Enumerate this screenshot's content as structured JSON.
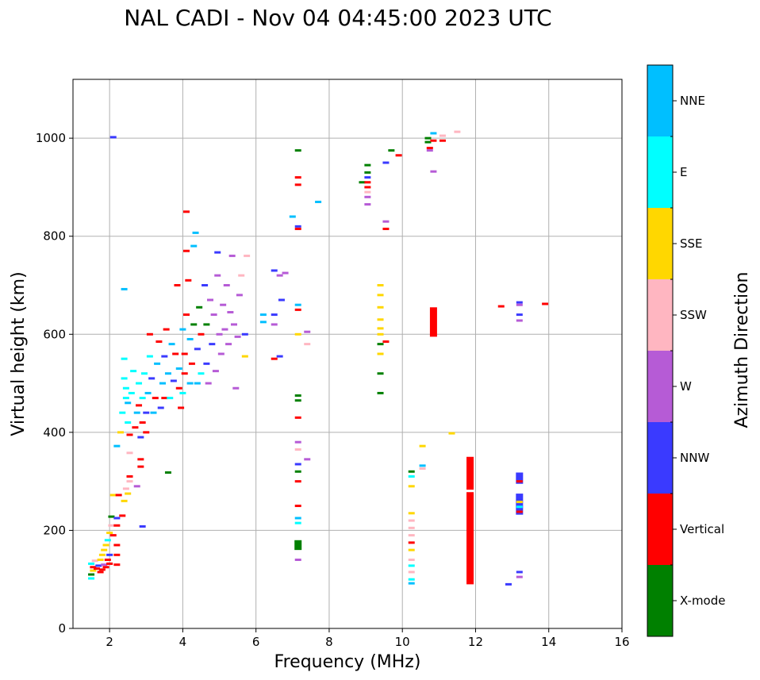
{
  "chart_data": {
    "type": "scatter",
    "title": "NAL CADI - Nov 04 04:45:00 2023 UTC",
    "xlabel": "Frequency (MHz)",
    "ylabel": "Virtual height (km)",
    "xlim": [
      1,
      16
    ],
    "ylim": [
      0,
      1120
    ],
    "xticks": [
      2,
      4,
      6,
      8,
      10,
      12,
      14,
      16
    ],
    "yticks": [
      0,
      200,
      400,
      600,
      800,
      1000
    ],
    "grid": true,
    "colorbar": {
      "label": "Azimuth Direction",
      "categories": [
        {
          "name": "X-mode",
          "color": "#008000"
        },
        {
          "name": "Vertical",
          "color": "#ff0000"
        },
        {
          "name": "NNW",
          "color": "#3a3aff"
        },
        {
          "name": "W",
          "color": "#b65bd6"
        },
        {
          "name": "SSW",
          "color": "#ffb6c1"
        },
        {
          "name": "SSE",
          "color": "#ffd700"
        },
        {
          "name": "E",
          "color": "#00ffff"
        },
        {
          "name": "NNE",
          "color": "#00bfff"
        }
      ]
    },
    "segments": [
      {
        "f": 11.85,
        "h1": 90,
        "h2": 278,
        "c": "Vertical"
      },
      {
        "f": 11.85,
        "h1": 283,
        "h2": 350,
        "c": "Vertical"
      },
      {
        "f": 13.2,
        "h1": 295,
        "h2": 318,
        "c": "NNW"
      },
      {
        "f": 13.2,
        "h1": 232,
        "h2": 275,
        "c": "NNW"
      },
      {
        "f": 7.15,
        "h1": 160,
        "h2": 180,
        "c": "X-mode"
      },
      {
        "f": 10.85,
        "h1": 595,
        "h2": 655,
        "c": "Vertical"
      }
    ],
    "points": [
      {
        "f": 1.5,
        "h": 102,
        "c": "E"
      },
      {
        "f": 1.5,
        "h": 110,
        "c": "X-mode"
      },
      {
        "f": 1.55,
        "h": 118,
        "c": "SSE"
      },
      {
        "f": 1.55,
        "h": 125,
        "c": "Vertical"
      },
      {
        "f": 1.5,
        "h": 132,
        "c": "E"
      },
      {
        "f": 1.6,
        "h": 138,
        "c": "SSW"
      },
      {
        "f": 1.65,
        "h": 122,
        "c": "Vertical"
      },
      {
        "f": 1.7,
        "h": 128,
        "c": "NNW"
      },
      {
        "f": 1.75,
        "h": 115,
        "c": "Vertical"
      },
      {
        "f": 1.75,
        "h": 140,
        "c": "SSE"
      },
      {
        "f": 1.8,
        "h": 150,
        "c": "SSE"
      },
      {
        "f": 1.8,
        "h": 120,
        "c": "Vertical"
      },
      {
        "f": 1.85,
        "h": 160,
        "c": "SSE"
      },
      {
        "f": 1.85,
        "h": 130,
        "c": "W"
      },
      {
        "f": 1.9,
        "h": 170,
        "c": "SSE"
      },
      {
        "f": 1.9,
        "h": 125,
        "c": "Vertical"
      },
      {
        "f": 1.95,
        "h": 180,
        "c": "E"
      },
      {
        "f": 1.95,
        "h": 140,
        "c": "Vertical"
      },
      {
        "f": 2.0,
        "h": 195,
        "c": "SSE"
      },
      {
        "f": 2.0,
        "h": 150,
        "c": "NNW"
      },
      {
        "f": 2.0,
        "h": 132,
        "c": "Vertical"
      },
      {
        "f": 2.05,
        "h": 210,
        "c": "SSW"
      },
      {
        "f": 2.05,
        "h": 228,
        "c": "X-mode"
      },
      {
        "f": 2.1,
        "h": 190,
        "c": "Vertical"
      },
      {
        "f": 2.1,
        "h": 272,
        "c": "SSE"
      },
      {
        "f": 2.2,
        "h": 150,
        "c": "Vertical"
      },
      {
        "f": 2.2,
        "h": 170,
        "c": "Vertical"
      },
      {
        "f": 2.2,
        "h": 210,
        "c": "Vertical"
      },
      {
        "f": 2.2,
        "h": 225,
        "c": "NNW"
      },
      {
        "f": 2.2,
        "h": 130,
        "c": "Vertical"
      },
      {
        "f": 2.25,
        "h": 272,
        "c": "Vertical"
      },
      {
        "f": 2.35,
        "h": 230,
        "c": "Vertical"
      },
      {
        "f": 2.4,
        "h": 260,
        "c": "SSE"
      },
      {
        "f": 2.45,
        "h": 285,
        "c": "SSW"
      },
      {
        "f": 2.5,
        "h": 275,
        "c": "SSE"
      },
      {
        "f": 2.55,
        "h": 300,
        "c": "SSW"
      },
      {
        "f": 2.55,
        "h": 358,
        "c": "SSW"
      },
      {
        "f": 2.55,
        "h": 310,
        "c": "Vertical"
      },
      {
        "f": 2.75,
        "h": 290,
        "c": "W"
      },
      {
        "f": 2.85,
        "h": 345,
        "c": "Vertical"
      },
      {
        "f": 2.85,
        "h": 330,
        "c": "Vertical"
      },
      {
        "f": 2.3,
        "h": 400,
        "c": "SSE"
      },
      {
        "f": 2.35,
        "h": 440,
        "c": "E"
      },
      {
        "f": 2.45,
        "h": 470,
        "c": "E"
      },
      {
        "f": 2.4,
        "h": 510,
        "c": "E"
      },
      {
        "f": 2.4,
        "h": 550,
        "c": "E"
      },
      {
        "f": 2.45,
        "h": 490,
        "c": "E"
      },
      {
        "f": 2.5,
        "h": 460,
        "c": "NNE"
      },
      {
        "f": 2.5,
        "h": 420,
        "c": "E"
      },
      {
        "f": 2.55,
        "h": 395,
        "c": "Vertical"
      },
      {
        "f": 2.6,
        "h": 480,
        "c": "E"
      },
      {
        "f": 2.65,
        "h": 525,
        "c": "E"
      },
      {
        "f": 2.7,
        "h": 410,
        "c": "Vertical"
      },
      {
        "f": 2.75,
        "h": 440,
        "c": "NNE"
      },
      {
        "f": 2.8,
        "h": 455,
        "c": "Vertical"
      },
      {
        "f": 2.8,
        "h": 500,
        "c": "E"
      },
      {
        "f": 2.85,
        "h": 390,
        "c": "NNW"
      },
      {
        "f": 2.9,
        "h": 420,
        "c": "Vertical"
      },
      {
        "f": 2.9,
        "h": 470,
        "c": "E"
      },
      {
        "f": 2.95,
        "h": 520,
        "c": "E"
      },
      {
        "f": 3.0,
        "h": 440,
        "c": "NNW"
      },
      {
        "f": 3.0,
        "h": 400,
        "c": "Vertical"
      },
      {
        "f": 3.05,
        "h": 480,
        "c": "NNE"
      },
      {
        "f": 3.1,
        "h": 555,
        "c": "E"
      },
      {
        "f": 3.1,
        "h": 600,
        "c": "Vertical"
      },
      {
        "f": 3.15,
        "h": 510,
        "c": "NNW"
      },
      {
        "f": 3.2,
        "h": 440,
        "c": "NNE"
      },
      {
        "f": 3.25,
        "h": 470,
        "c": "Vertical"
      },
      {
        "f": 3.3,
        "h": 540,
        "c": "NNE"
      },
      {
        "f": 3.35,
        "h": 585,
        "c": "Vertical"
      },
      {
        "f": 3.4,
        "h": 450,
        "c": "NNW"
      },
      {
        "f": 3.45,
        "h": 500,
        "c": "NNE"
      },
      {
        "f": 3.5,
        "h": 470,
        "c": "Vertical"
      },
      {
        "f": 3.5,
        "h": 555,
        "c": "NNW"
      },
      {
        "f": 3.55,
        "h": 610,
        "c": "Vertical"
      },
      {
        "f": 3.6,
        "h": 520,
        "c": "NNE"
      },
      {
        "f": 3.65,
        "h": 470,
        "c": "E"
      },
      {
        "f": 3.7,
        "h": 580,
        "c": "NNE"
      },
      {
        "f": 3.75,
        "h": 505,
        "c": "NNW"
      },
      {
        "f": 3.8,
        "h": 560,
        "c": "Vertical"
      },
      {
        "f": 3.85,
        "h": 700,
        "c": "Vertical"
      },
      {
        "f": 3.9,
        "h": 490,
        "c": "Vertical"
      },
      {
        "f": 3.9,
        "h": 530,
        "c": "NNE"
      },
      {
        "f": 3.95,
        "h": 450,
        "c": "Vertical"
      },
      {
        "f": 4.0,
        "h": 610,
        "c": "NNE"
      },
      {
        "f": 4.0,
        "h": 480,
        "c": "E"
      },
      {
        "f": 4.05,
        "h": 560,
        "c": "Vertical"
      },
      {
        "f": 4.05,
        "h": 520,
        "c": "Vertical"
      },
      {
        "f": 4.1,
        "h": 640,
        "c": "Vertical"
      },
      {
        "f": 4.1,
        "h": 770,
        "c": "Vertical"
      },
      {
        "f": 4.1,
        "h": 850,
        "c": "Vertical"
      },
      {
        "f": 4.15,
        "h": 710,
        "c": "Vertical"
      },
      {
        "f": 4.2,
        "h": 590,
        "c": "NNE"
      },
      {
        "f": 4.2,
        "h": 500,
        "c": "NNE"
      },
      {
        "f": 4.25,
        "h": 540,
        "c": "Vertical"
      },
      {
        "f": 4.3,
        "h": 780,
        "c": "NNE"
      },
      {
        "f": 4.3,
        "h": 620,
        "c": "X-mode"
      },
      {
        "f": 4.35,
        "h": 807,
        "c": "NNE"
      },
      {
        "f": 4.4,
        "h": 500,
        "c": "NNE"
      },
      {
        "f": 4.4,
        "h": 570,
        "c": "NNW"
      },
      {
        "f": 4.45,
        "h": 655,
        "c": "X-mode"
      },
      {
        "f": 4.5,
        "h": 600,
        "c": "Vertical"
      },
      {
        "f": 4.5,
        "h": 520,
        "c": "E"
      },
      {
        "f": 4.6,
        "h": 700,
        "c": "NNW"
      },
      {
        "f": 4.65,
        "h": 620,
        "c": "X-mode"
      },
      {
        "f": 4.65,
        "h": 540,
        "c": "NNW"
      },
      {
        "f": 4.7,
        "h": 500,
        "c": "W"
      },
      {
        "f": 4.75,
        "h": 670,
        "c": "W"
      },
      {
        "f": 4.8,
        "h": 580,
        "c": "NNW"
      },
      {
        "f": 4.85,
        "h": 640,
        "c": "W"
      },
      {
        "f": 4.9,
        "h": 525,
        "c": "W"
      },
      {
        "f": 4.95,
        "h": 720,
        "c": "W"
      },
      {
        "f": 4.95,
        "h": 767,
        "c": "NNW"
      },
      {
        "f": 5.0,
        "h": 600,
        "c": "W"
      },
      {
        "f": 5.05,
        "h": 560,
        "c": "W"
      },
      {
        "f": 5.1,
        "h": 660,
        "c": "W"
      },
      {
        "f": 5.15,
        "h": 610,
        "c": "W"
      },
      {
        "f": 5.2,
        "h": 700,
        "c": "W"
      },
      {
        "f": 5.25,
        "h": 580,
        "c": "W"
      },
      {
        "f": 5.3,
        "h": 645,
        "c": "W"
      },
      {
        "f": 5.35,
        "h": 760,
        "c": "W"
      },
      {
        "f": 5.4,
        "h": 620,
        "c": "W"
      },
      {
        "f": 5.45,
        "h": 490,
        "c": "W"
      },
      {
        "f": 5.5,
        "h": 595,
        "c": "W"
      },
      {
        "f": 5.55,
        "h": 680,
        "c": "W"
      },
      {
        "f": 5.6,
        "h": 720,
        "c": "SSW"
      },
      {
        "f": 5.7,
        "h": 600,
        "c": "NNW"
      },
      {
        "f": 5.7,
        "h": 555,
        "c": "SSE"
      },
      {
        "f": 5.75,
        "h": 760,
        "c": "SSW"
      },
      {
        "f": 6.2,
        "h": 640,
        "c": "NNE"
      },
      {
        "f": 6.2,
        "h": 625,
        "c": "NNE"
      },
      {
        "f": 6.5,
        "h": 730,
        "c": "NNW"
      },
      {
        "f": 6.5,
        "h": 640,
        "c": "NNW"
      },
      {
        "f": 6.5,
        "h": 620,
        "c": "W"
      },
      {
        "f": 6.5,
        "h": 550,
        "c": "Vertical"
      },
      {
        "f": 6.65,
        "h": 720,
        "c": "W"
      },
      {
        "f": 6.7,
        "h": 670,
        "c": "NNW"
      },
      {
        "f": 6.8,
        "h": 725,
        "c": "W"
      },
      {
        "f": 6.65,
        "h": 555,
        "c": "NNW"
      },
      {
        "f": 7.0,
        "h": 840,
        "c": "NNE"
      },
      {
        "f": 7.15,
        "h": 975,
        "c": "X-mode"
      },
      {
        "f": 7.15,
        "h": 920,
        "c": "Vertical"
      },
      {
        "f": 7.15,
        "h": 905,
        "c": "Vertical"
      },
      {
        "f": 7.15,
        "h": 820,
        "c": "NNW"
      },
      {
        "f": 7.15,
        "h": 815,
        "c": "Vertical"
      },
      {
        "f": 7.15,
        "h": 660,
        "c": "NNE"
      },
      {
        "f": 7.15,
        "h": 650,
        "c": "Vertical"
      },
      {
        "f": 7.15,
        "h": 600,
        "c": "SSE"
      },
      {
        "f": 7.15,
        "h": 475,
        "c": "X-mode"
      },
      {
        "f": 7.15,
        "h": 465,
        "c": "X-mode"
      },
      {
        "f": 7.15,
        "h": 430,
        "c": "Vertical"
      },
      {
        "f": 7.15,
        "h": 380,
        "c": "W"
      },
      {
        "f": 7.15,
        "h": 365,
        "c": "SSW"
      },
      {
        "f": 7.15,
        "h": 335,
        "c": "NNW"
      },
      {
        "f": 7.15,
        "h": 320,
        "c": "X-mode"
      },
      {
        "f": 7.15,
        "h": 300,
        "c": "Vertical"
      },
      {
        "f": 7.15,
        "h": 250,
        "c": "Vertical"
      },
      {
        "f": 7.15,
        "h": 225,
        "c": "NNE"
      },
      {
        "f": 7.15,
        "h": 215,
        "c": "E"
      },
      {
        "f": 7.15,
        "h": 140,
        "c": "W"
      },
      {
        "f": 7.4,
        "h": 605,
        "c": "W"
      },
      {
        "f": 7.4,
        "h": 580,
        "c": "SSW"
      },
      {
        "f": 7.4,
        "h": 345,
        "c": "W"
      },
      {
        "f": 7.7,
        "h": 870,
        "c": "NNE"
      },
      {
        "f": 8.9,
        "h": 910,
        "c": "X-mode"
      },
      {
        "f": 9.05,
        "h": 945,
        "c": "X-mode"
      },
      {
        "f": 9.05,
        "h": 930,
        "c": "X-mode"
      },
      {
        "f": 9.05,
        "h": 920,
        "c": "NNW"
      },
      {
        "f": 9.05,
        "h": 900,
        "c": "Vertical"
      },
      {
        "f": 9.05,
        "h": 890,
        "c": "SSW"
      },
      {
        "f": 9.05,
        "h": 880,
        "c": "W"
      },
      {
        "f": 9.05,
        "h": 865,
        "c": "W"
      },
      {
        "f": 9.05,
        "h": 910,
        "c": "Vertical"
      },
      {
        "f": 9.4,
        "h": 700,
        "c": "SSE"
      },
      {
        "f": 9.4,
        "h": 680,
        "c": "SSE"
      },
      {
        "f": 9.4,
        "h": 655,
        "c": "SSE"
      },
      {
        "f": 9.4,
        "h": 630,
        "c": "SSE"
      },
      {
        "f": 9.4,
        "h": 612,
        "c": "SSE"
      },
      {
        "f": 9.4,
        "h": 600,
        "c": "SSE"
      },
      {
        "f": 9.4,
        "h": 580,
        "c": "X-mode"
      },
      {
        "f": 9.4,
        "h": 560,
        "c": "SSE"
      },
      {
        "f": 9.4,
        "h": 520,
        "c": "X-mode"
      },
      {
        "f": 9.4,
        "h": 480,
        "c": "X-mode"
      },
      {
        "f": 9.55,
        "h": 950,
        "c": "NNW"
      },
      {
        "f": 9.55,
        "h": 830,
        "c": "W"
      },
      {
        "f": 9.55,
        "h": 815,
        "c": "Vertical"
      },
      {
        "f": 9.55,
        "h": 585,
        "c": "Vertical"
      },
      {
        "f": 9.7,
        "h": 975,
        "c": "X-mode"
      },
      {
        "f": 9.9,
        "h": 965,
        "c": "Vertical"
      },
      {
        "f": 10.25,
        "h": 320,
        "c": "X-mode"
      },
      {
        "f": 10.25,
        "h": 310,
        "c": "E"
      },
      {
        "f": 10.25,
        "h": 290,
        "c": "SSE"
      },
      {
        "f": 10.25,
        "h": 235,
        "c": "SSE"
      },
      {
        "f": 10.25,
        "h": 220,
        "c": "SSW"
      },
      {
        "f": 10.25,
        "h": 205,
        "c": "SSW"
      },
      {
        "f": 10.25,
        "h": 190,
        "c": "SSW"
      },
      {
        "f": 10.25,
        "h": 175,
        "c": "Vertical"
      },
      {
        "f": 10.25,
        "h": 160,
        "c": "SSE"
      },
      {
        "f": 10.25,
        "h": 140,
        "c": "SSW"
      },
      {
        "f": 10.25,
        "h": 128,
        "c": "E"
      },
      {
        "f": 10.25,
        "h": 115,
        "c": "SSW"
      },
      {
        "f": 10.25,
        "h": 100,
        "c": "E"
      },
      {
        "f": 10.25,
        "h": 92,
        "c": "NNE"
      },
      {
        "f": 10.55,
        "h": 372,
        "c": "SSE"
      },
      {
        "f": 10.55,
        "h": 332,
        "c": "NNE"
      },
      {
        "f": 10.55,
        "h": 326,
        "c": "SSW"
      },
      {
        "f": 10.7,
        "h": 1000,
        "c": "X-mode"
      },
      {
        "f": 10.7,
        "h": 992,
        "c": "X-mode"
      },
      {
        "f": 10.75,
        "h": 980,
        "c": "Vertical"
      },
      {
        "f": 10.75,
        "h": 975,
        "c": "W"
      },
      {
        "f": 10.85,
        "h": 1010,
        "c": "NNE"
      },
      {
        "f": 10.85,
        "h": 995,
        "c": "Vertical"
      },
      {
        "f": 10.85,
        "h": 932,
        "c": "W"
      },
      {
        "f": 11.1,
        "h": 1005,
        "c": "SSW"
      },
      {
        "f": 11.1,
        "h": 995,
        "c": "Vertical"
      },
      {
        "f": 11.35,
        "h": 398,
        "c": "SSE"
      },
      {
        "f": 11.5,
        "h": 1013,
        "c": "SSW"
      },
      {
        "f": 12.7,
        "h": 657,
        "c": "Vertical"
      },
      {
        "f": 12.9,
        "h": 90,
        "c": "NNW"
      },
      {
        "f": 13.2,
        "h": 665,
        "c": "NNW"
      },
      {
        "f": 13.2,
        "h": 660,
        "c": "W"
      },
      {
        "f": 13.2,
        "h": 640,
        "c": "NNW"
      },
      {
        "f": 13.2,
        "h": 628,
        "c": "W"
      },
      {
        "f": 13.2,
        "h": 300,
        "c": "Vertical"
      },
      {
        "f": 13.2,
        "h": 258,
        "c": "SSE"
      },
      {
        "f": 13.2,
        "h": 248,
        "c": "E"
      },
      {
        "f": 13.2,
        "h": 238,
        "c": "Vertical"
      },
      {
        "f": 13.2,
        "h": 115,
        "c": "NNW"
      },
      {
        "f": 13.2,
        "h": 105,
        "c": "W"
      },
      {
        "f": 13.9,
        "h": 662,
        "c": "Vertical"
      },
      {
        "f": 2.1,
        "h": 1002,
        "c": "NNW"
      },
      {
        "f": 2.4,
        "h": 692,
        "c": "NNE"
      },
      {
        "f": 3.6,
        "h": 318,
        "c": "X-mode"
      },
      {
        "f": 2.9,
        "h": 208,
        "c": "NNW"
      },
      {
        "f": 2.2,
        "h": 372,
        "c": "NNE"
      }
    ]
  }
}
